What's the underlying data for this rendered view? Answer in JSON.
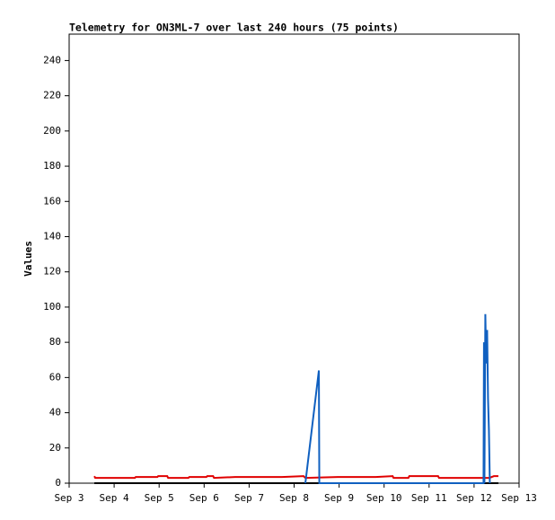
{
  "chart_data": {
    "type": "line",
    "title": "Telemetry for ON3ML-7 over last 240 hours (75 points)",
    "ylabel": "Values",
    "xlim": [
      3,
      13
    ],
    "xticks": [
      {
        "value": 3,
        "label": "Sep 3"
      },
      {
        "value": 4,
        "label": "Sep 4"
      },
      {
        "value": 5,
        "label": "Sep 5"
      },
      {
        "value": 6,
        "label": "Sep 6"
      },
      {
        "value": 7,
        "label": "Sep 7"
      },
      {
        "value": 8,
        "label": "Sep 8"
      },
      {
        "value": 9,
        "label": "Sep 9"
      },
      {
        "value": 10,
        "label": "Sep 10"
      },
      {
        "value": 11,
        "label": "Sep 11"
      },
      {
        "value": 12,
        "label": "Sep 12"
      },
      {
        "value": 13,
        "label": "Sep 13"
      }
    ],
    "ylim": [
      0,
      255
    ],
    "yticks": [
      0,
      20,
      40,
      60,
      80,
      100,
      120,
      140,
      160,
      180,
      200,
      220,
      240
    ],
    "series": [
      {
        "color": "#000000",
        "x": [
          3.56,
          12.54
        ],
        "values": [
          0,
          0
        ]
      },
      {
        "color": "#e00000",
        "x": [
          3.56,
          3.58,
          4.46,
          4.48,
          4.96,
          4.98,
          5.18,
          5.2,
          5.65,
          5.67,
          6.05,
          6.07,
          6.2,
          6.22,
          6.69,
          7.73,
          8.21,
          8.25,
          8.97,
          9.81,
          10.19,
          10.21,
          10.54,
          10.56,
          11.04,
          11.2,
          11.22,
          12.34,
          12.44,
          12.54
        ],
        "values": [
          4,
          3,
          3,
          3.5,
          3.5,
          4,
          4,
          3,
          3,
          3.5,
          3.5,
          4,
          4,
          3,
          3.5,
          3.5,
          4,
          3,
          3.5,
          3.5,
          4,
          3,
          3,
          4,
          4,
          4,
          3,
          3,
          4,
          4
        ]
      },
      {
        "color": "#1060c0",
        "x": [
          8.25,
          8.55,
          8.56,
          12.21,
          12.22,
          12.23,
          12.25,
          12.27,
          12.29,
          12.31,
          12.33,
          12.35
        ],
        "values": [
          0,
          64,
          0,
          0,
          80,
          0,
          96,
          68,
          87,
          48,
          30,
          0
        ]
      }
    ]
  }
}
